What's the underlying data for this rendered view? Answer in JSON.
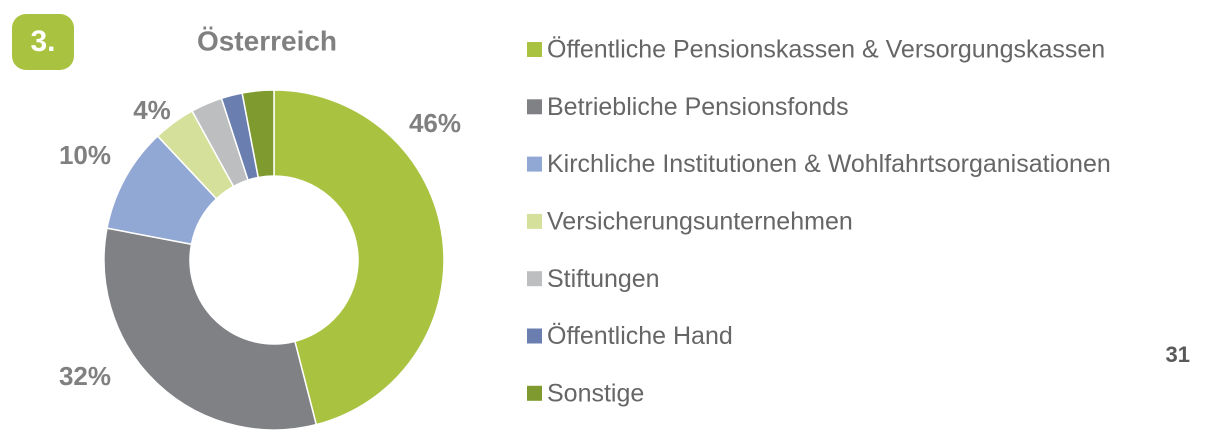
{
  "badge": "3.",
  "page_number": "31",
  "chart_data": {
    "type": "donut",
    "title": "Österreich",
    "categories": [
      "Öffentliche Pensionskassen & Versorgungskassen",
      "Betriebliche Pensionsfonds",
      "Kirchliche Institutionen & Wohlfahrtsorganisationen",
      "Versicherungsunternehmen",
      "Stiftungen",
      "Öffentliche Hand",
      "Sonstige"
    ],
    "values": [
      46,
      32,
      10,
      4,
      3,
      2,
      3
    ],
    "value_labels": [
      "46%",
      "32%",
      "10%",
      "4%",
      null,
      null,
      null
    ],
    "colors": [
      "#a9c23f",
      "#7f8185",
      "#91a8d4",
      "#d5e09a",
      "#bcbec0",
      "#6a7fb0",
      "#7f9a2e"
    ],
    "legend": "right"
  }
}
